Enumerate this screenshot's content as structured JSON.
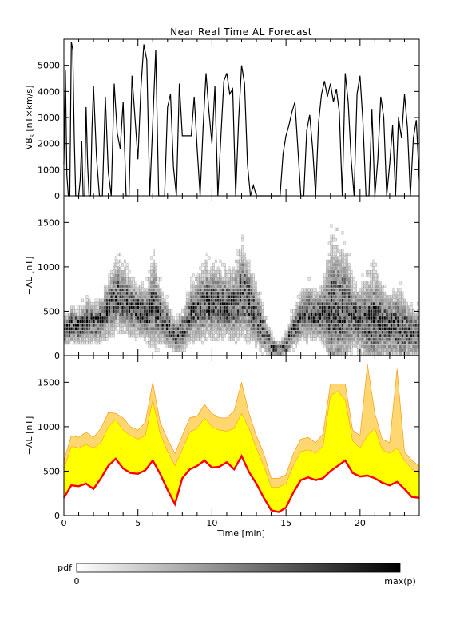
{
  "chart_data": [
    {
      "type": "line",
      "title": "Near Real Time AL Forecast",
      "ylabel": "VB",
      "ylabel_sub": "s",
      "ylabel_unit": " [nT×km/s]",
      "xlim": [
        0,
        24
      ],
      "ylim": [
        0,
        6000
      ],
      "yticks": [
        0,
        1000,
        2000,
        3000,
        4000,
        5000
      ],
      "series": [
        {
          "color": "#000000",
          "x": [
            0,
            0.1,
            0.2,
            0.3,
            0.4,
            0.5,
            0.6,
            0.7,
            0.8,
            0.9,
            1.0,
            1.1,
            1.2,
            1.3,
            1.4,
            1.5,
            1.6,
            1.7,
            1.8,
            1.9,
            2.0,
            2.2,
            2.4,
            2.6,
            2.8,
            3.0,
            3.2,
            3.4,
            3.6,
            3.8,
            4.0,
            4.2,
            4.4,
            4.6,
            4.8,
            5.0,
            5.2,
            5.4,
            5.6,
            5.8,
            6.0,
            6.2,
            6.4,
            6.6,
            6.8,
            7.0,
            7.2,
            7.4,
            7.6,
            7.8,
            8.0,
            8.2,
            8.4,
            8.6,
            8.8,
            9.0,
            9.2,
            9.4,
            9.6,
            9.8,
            10.0,
            10.2,
            10.4,
            10.6,
            10.8,
            11.0,
            11.2,
            11.4,
            11.6,
            11.8,
            12.0,
            12.2,
            12.4,
            12.6,
            12.8,
            13.0,
            13.2,
            13.4,
            13.6,
            13.8,
            14.0,
            14.2,
            14.4,
            14.6,
            14.8,
            15.0,
            15.2,
            15.4,
            15.6,
            15.8,
            16.0,
            16.2,
            16.4,
            16.6,
            16.8,
            17.0,
            17.2,
            17.4,
            17.6,
            17.8,
            18.0,
            18.2,
            18.4,
            18.6,
            18.8,
            19.0,
            19.2,
            19.4,
            19.6,
            19.8,
            20.0,
            20.2,
            20.4,
            20.6,
            20.8,
            21.0,
            21.2,
            21.4,
            21.6,
            21.8,
            22.0,
            22.2,
            22.4,
            22.6,
            22.8,
            23.0,
            23.2,
            23.4,
            23.6,
            23.8,
            24.0
          ],
          "values": [
            1200,
            4800,
            800,
            0,
            0,
            5900,
            5600,
            2200,
            0,
            0,
            0,
            600,
            2100,
            0,
            0,
            3400,
            1200,
            0,
            0,
            2600,
            4200,
            1500,
            0,
            0,
            3800,
            900,
            0,
            4300,
            2400,
            1800,
            3600,
            0,
            0,
            4600,
            3000,
            1400,
            4100,
            5800,
            5200,
            0,
            2800,
            5600,
            0,
            0,
            0,
            3400,
            3900,
            1100,
            0,
            4300,
            2300,
            2300,
            2300,
            2300,
            3800,
            1800,
            0,
            2600,
            4700,
            3200,
            2000,
            4200,
            0,
            2200,
            4400,
            4700,
            3900,
            4100,
            0,
            2900,
            5000,
            4300,
            1200,
            0,
            400,
            0,
            0,
            0,
            0,
            0,
            0,
            0,
            0,
            0,
            1600,
            2300,
            2700,
            3200,
            3600,
            1800,
            0,
            0,
            2500,
            3100,
            1800,
            0,
            2800,
            3900,
            4400,
            3800,
            4300,
            3600,
            4100,
            3200,
            0,
            4700,
            3600,
            1400,
            0,
            3900,
            4600,
            2800,
            0,
            0,
            3300,
            0,
            1400,
            3800,
            3000,
            0,
            1200,
            2700,
            0,
            3000,
            2200,
            3900,
            2600,
            0,
            2200,
            2900,
            600
          ]
        }
      ]
    },
    {
      "type": "heatmap",
      "ylabel": "−AL [nT]",
      "xlim": [
        0,
        24
      ],
      "ylim": [
        0,
        1800
      ],
      "yticks": [
        0,
        500,
        1000,
        1500
      ],
      "x": [
        0,
        0.5,
        1.0,
        1.5,
        2.0,
        2.5,
        3.0,
        3.5,
        4.0,
        4.5,
        5.0,
        5.5,
        6.0,
        6.5,
        7.0,
        7.5,
        8.0,
        8.5,
        9.0,
        9.5,
        10.0,
        10.5,
        11.0,
        11.5,
        12.0,
        12.5,
        13.0,
        13.5,
        14.0,
        14.5,
        15.0,
        15.5,
        16.0,
        16.5,
        17.0,
        17.5,
        18.0,
        18.5,
        19.0,
        19.5,
        20.0,
        20.5,
        21.0,
        21.5,
        22.0,
        22.5,
        23.0,
        23.5,
        24.0
      ],
      "center": [
        250,
        320,
        300,
        380,
        340,
        380,
        520,
        650,
        600,
        520,
        480,
        430,
        560,
        420,
        300,
        180,
        260,
        450,
        520,
        580,
        580,
        560,
        540,
        560,
        700,
        560,
        400,
        220,
        80,
        30,
        120,
        300,
        420,
        460,
        420,
        460,
        500,
        480,
        520,
        420,
        380,
        360,
        380,
        330,
        300,
        320,
        260,
        220,
        220
      ],
      "spread": [
        200,
        250,
        230,
        280,
        260,
        300,
        400,
        450,
        430,
        380,
        350,
        330,
        600,
        360,
        280,
        220,
        260,
        380,
        420,
        500,
        470,
        450,
        420,
        480,
        580,
        500,
        380,
        260,
        120,
        100,
        160,
        260,
        320,
        360,
        330,
        380,
        900,
        850,
        700,
        420,
        420,
        600,
        700,
        450,
        420,
        500,
        400,
        320,
        300
      ],
      "colorbar": {
        "label": "pdf",
        "min_label": "0",
        "max_label": "max(p)"
      }
    },
    {
      "type": "area",
      "ylabel": "−AL [nT]",
      "xlabel": "Time [min]",
      "xlim": [
        0,
        24
      ],
      "ylim": [
        0,
        1800
      ],
      "yticks": [
        0,
        500,
        1000,
        1500
      ],
      "xticks": [
        0,
        5,
        10,
        15,
        20
      ],
      "x": [
        0,
        0.5,
        1.0,
        1.5,
        2.0,
        2.5,
        3.0,
        3.5,
        4.0,
        4.5,
        5.0,
        5.5,
        6.0,
        6.5,
        7.0,
        7.5,
        8.0,
        8.5,
        9.0,
        9.5,
        10.0,
        10.5,
        11.0,
        11.5,
        12.0,
        12.5,
        13.0,
        13.5,
        14.0,
        14.5,
        15.0,
        15.5,
        16.0,
        16.5,
        17.0,
        17.5,
        18.0,
        18.5,
        19.0,
        19.5,
        20.0,
        20.5,
        21.0,
        21.5,
        22.0,
        22.5,
        23.0,
        23.5,
        24.0
      ],
      "median": [
        200,
        340,
        330,
        360,
        300,
        420,
        560,
        640,
        530,
        480,
        470,
        510,
        620,
        470,
        290,
        130,
        420,
        520,
        560,
        620,
        540,
        550,
        600,
        520,
        670,
        490,
        360,
        200,
        60,
        40,
        90,
        260,
        400,
        430,
        400,
        420,
        500,
        560,
        620,
        480,
        440,
        450,
        420,
        370,
        340,
        380,
        300,
        210,
        200
      ],
      "band_inner": [
        520,
        780,
        760,
        800,
        760,
        820,
        1000,
        1080,
        960,
        900,
        860,
        900,
        1300,
        920,
        720,
        560,
        740,
        940,
        980,
        1100,
        1000,
        960,
        950,
        980,
        1150,
        980,
        760,
        560,
        320,
        320,
        360,
        560,
        720,
        740,
        700,
        780,
        1350,
        1400,
        1300,
        840,
        760,
        900,
        980,
        740,
        700,
        760,
        620,
        520,
        480
      ],
      "band_outer": [
        620,
        900,
        880,
        940,
        880,
        980,
        1160,
        1150,
        1100,
        1000,
        960,
        1050,
        1500,
        1050,
        860,
        700,
        900,
        1100,
        1120,
        1250,
        1150,
        1100,
        1100,
        1180,
        1500,
        1150,
        900,
        700,
        420,
        420,
        460,
        700,
        860,
        880,
        820,
        920,
        1480,
        1480,
        1480,
        960,
        900,
        1700,
        1150,
        860,
        820,
        1650,
        720,
        620,
        560
      ],
      "colors": {
        "median": "#ff0000",
        "band_inner": "#ffff00",
        "band_outer": "#ffd770",
        "band_edge": "#ff8c00"
      }
    }
  ]
}
